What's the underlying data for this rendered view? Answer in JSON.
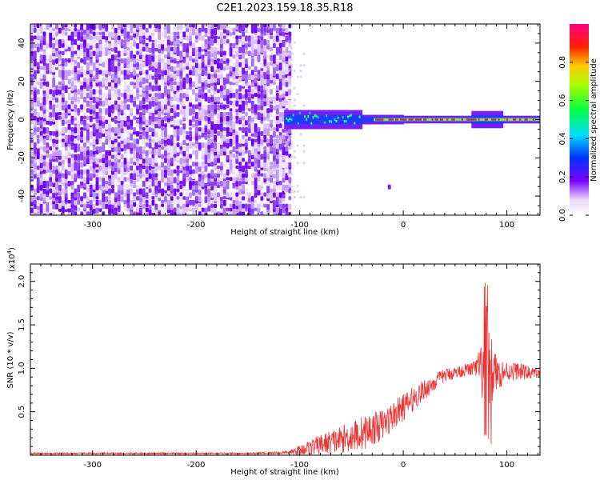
{
  "figure": {
    "title": "C2E1.2023.159.18.35.R18"
  },
  "chart_data": [
    {
      "type": "heatmap",
      "name": "spectrogram",
      "xlabel": "Height of straight line (km)",
      "ylabel": "Frequency (Hz)",
      "xlim": [
        -360,
        132
      ],
      "ylim": [
        -50,
        50
      ],
      "xticks": [
        -300,
        -200,
        -100,
        0,
        100
      ],
      "yticks": [
        -40,
        -20,
        0,
        20,
        40
      ],
      "colorbar": {
        "label": "Normalized spectral amplitude",
        "range": [
          0,
          1
        ],
        "ticks": [
          "0.0",
          "0.2",
          "0.4",
          "0.6",
          "0.8"
        ]
      },
      "noise_region_x": [
        -360,
        -110
      ],
      "signal_band_center_hz": 0,
      "grid": false
    },
    {
      "type": "line",
      "name": "snr",
      "xlabel": "Height of straight line (km)",
      "ylabel": "SNR (10 * v/v)",
      "yscale_label": "(x10",
      "yscale_exp": "4",
      "yscale_close": ")",
      "xlim": [
        -360,
        132
      ],
      "ylim": [
        0,
        2.2
      ],
      "xticks": [
        -300,
        -200,
        -100,
        0,
        100
      ],
      "yticks": [
        "0.5",
        "1.0",
        "1.5",
        "2.0"
      ],
      "color": "#ee3333",
      "envelope": {
        "x": [
          -360,
          -150,
          -110,
          -100,
          -80,
          -60,
          -40,
          -20,
          0,
          20,
          40,
          60,
          70,
          75,
          80,
          85,
          90,
          100,
          110,
          120,
          132
        ],
        "mean": [
          0.02,
          0.02,
          0.03,
          0.06,
          0.12,
          0.18,
          0.25,
          0.35,
          0.55,
          0.75,
          0.92,
          0.98,
          1.0,
          0.98,
          0.96,
          0.95,
          0.94,
          0.96,
          0.97,
          0.95,
          0.94
        ],
        "spread": [
          0.01,
          0.01,
          0.02,
          0.06,
          0.12,
          0.16,
          0.2,
          0.18,
          0.16,
          0.12,
          0.08,
          0.07,
          0.1,
          0.3,
          0.6,
          0.4,
          0.2,
          0.12,
          0.1,
          0.08,
          0.04
        ]
      },
      "grid": false
    }
  ]
}
